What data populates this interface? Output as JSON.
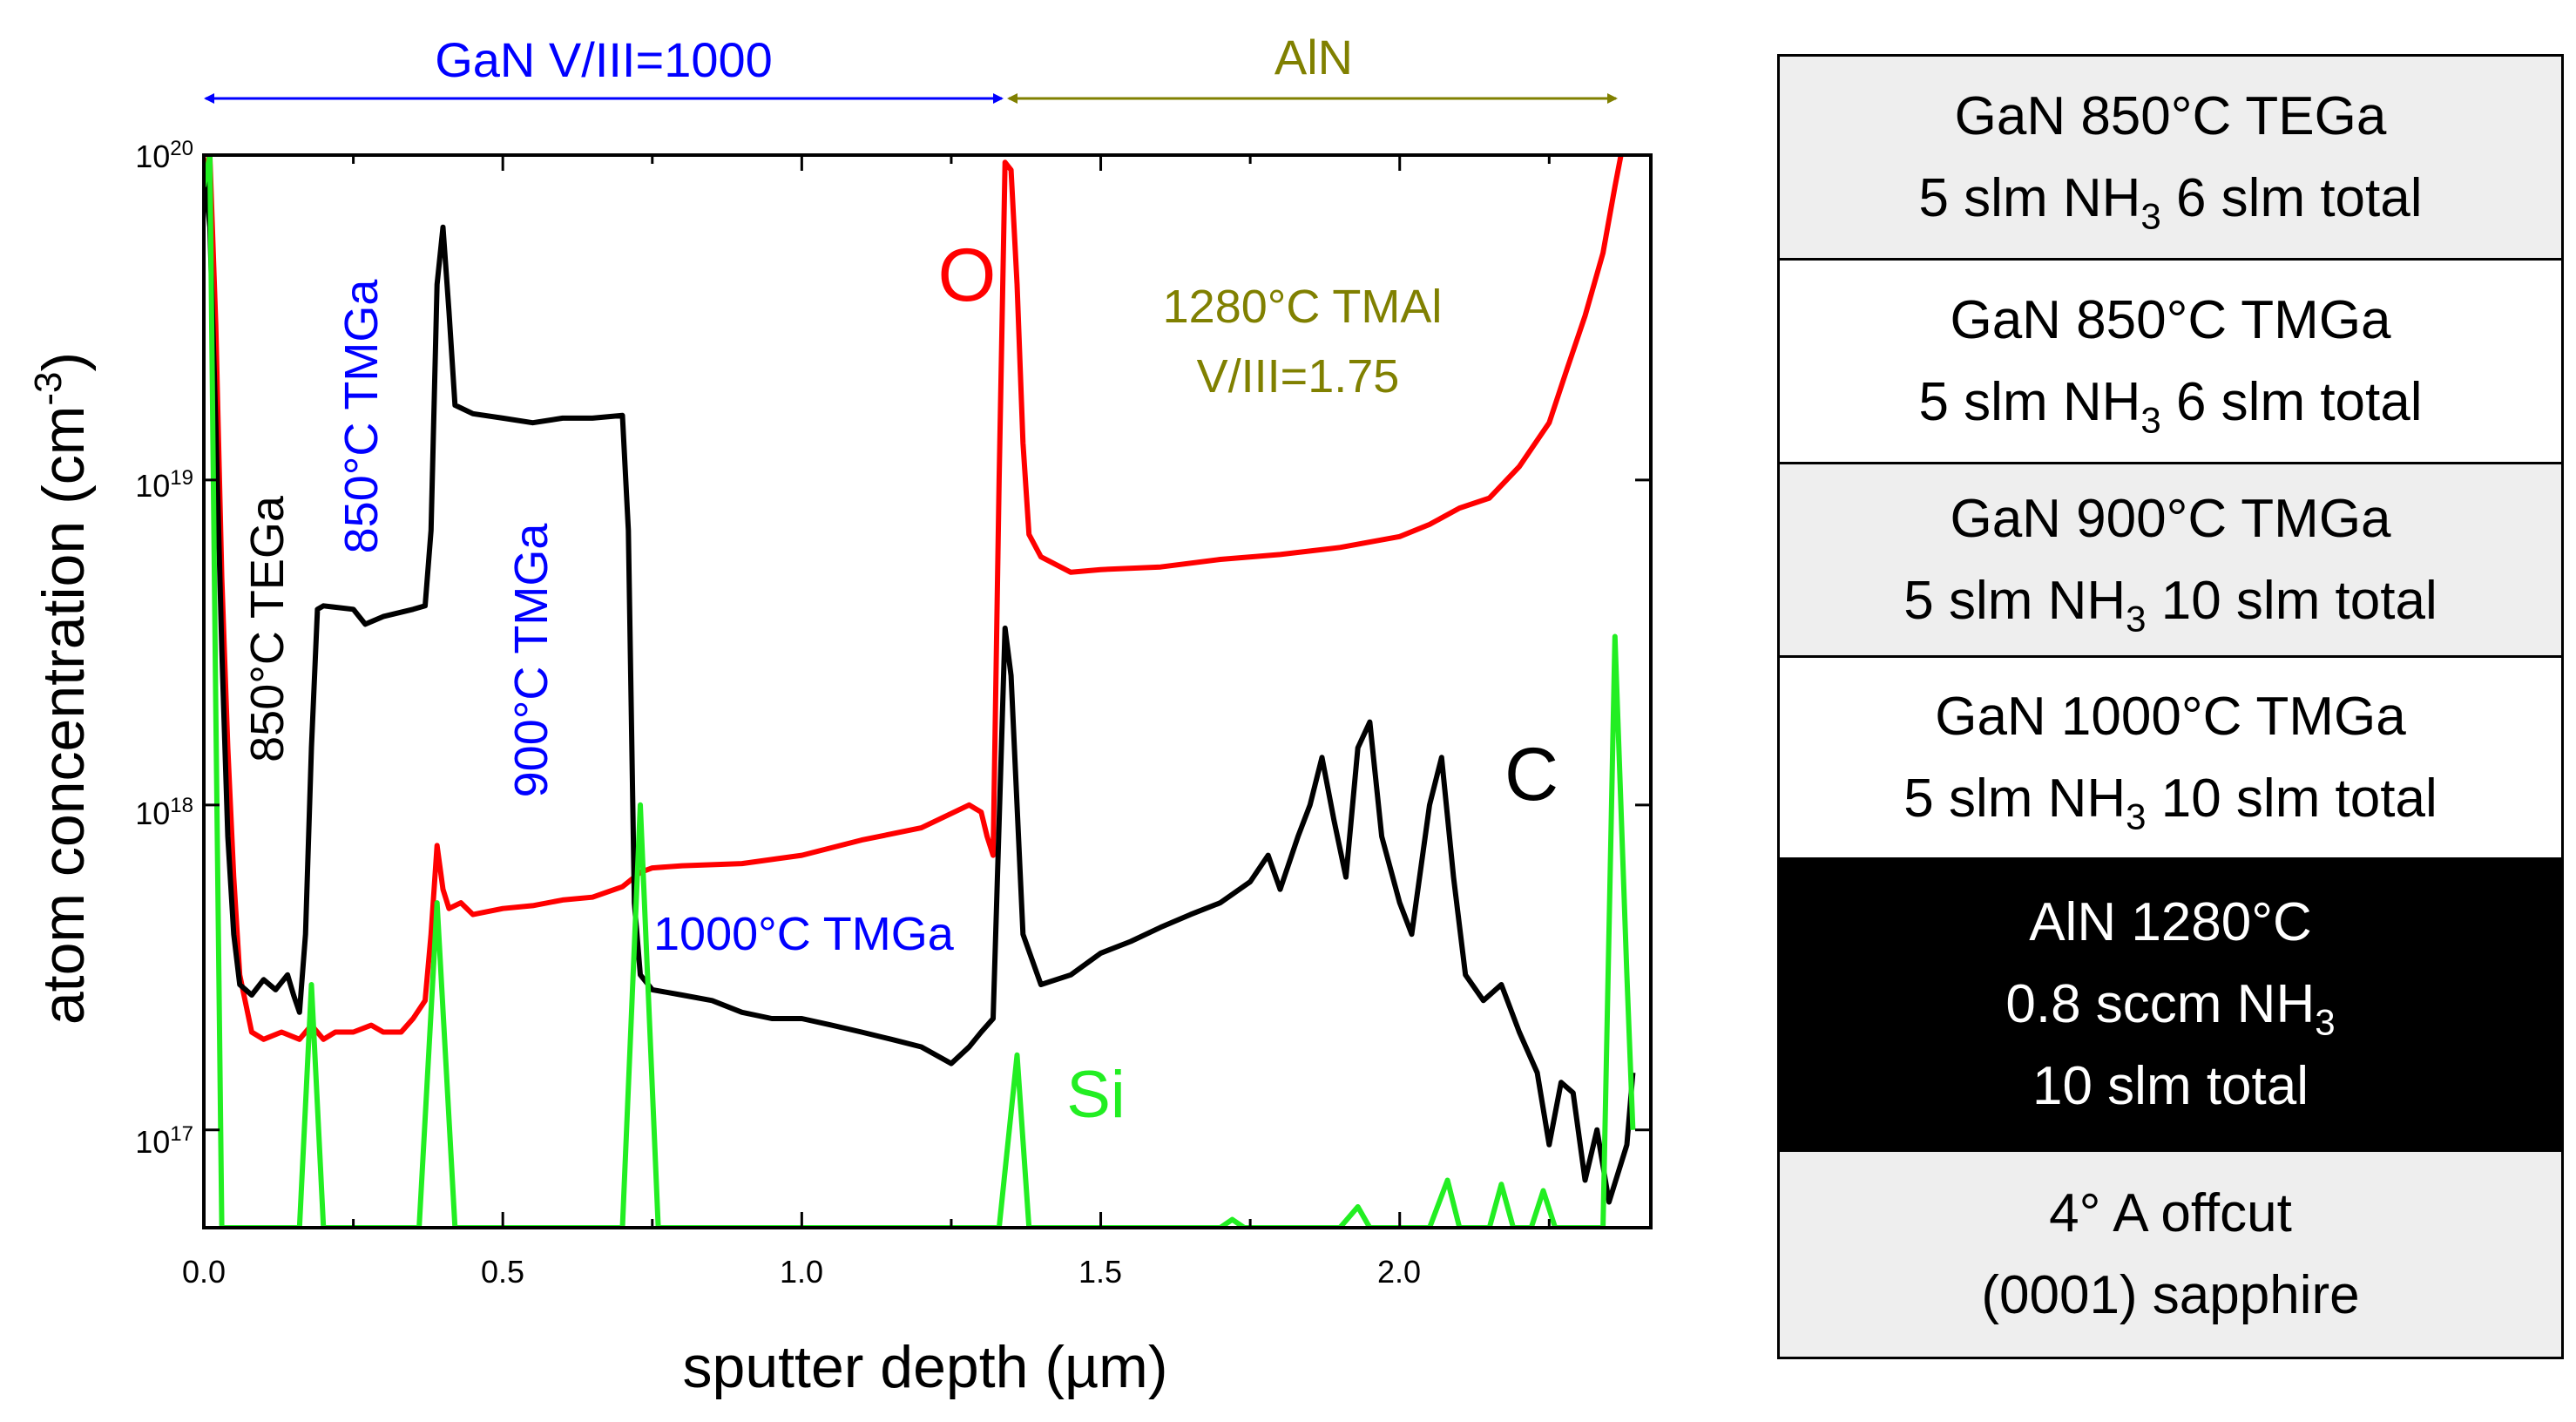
{
  "chart_data": {
    "type": "line",
    "xlabel": "sputter depth  (µm)",
    "ylabel": "atom concentration  (cm",
    "ylabel_sup": "-3",
    "ylabel_close": ")",
    "xlim": [
      0.0,
      2.42
    ],
    "ylim": [
      5e+16,
      1e+20
    ],
    "yscale": "log",
    "x_ticks": [
      "0.0",
      "0.5",
      "1.0",
      "1.5",
      "2.0"
    ],
    "x_tick_values": [
      0.0,
      0.5,
      1.0,
      1.5,
      2.0
    ],
    "y_ticks": [
      {
        "base": "10",
        "exp": "20",
        "value": 1e+20
      },
      {
        "base": "10",
        "exp": "19",
        "value": 1e+19
      },
      {
        "base": "10",
        "exp": "18",
        "value": 1e+18
      },
      {
        "base": "10",
        "exp": "17",
        "value": 1e+17
      }
    ],
    "series": [
      {
        "name": "O",
        "color": "#ff0000",
        "points": [
          [
            0.0,
            9e+19
          ],
          [
            0.01,
            1e+20
          ],
          [
            0.02,
            3e+19
          ],
          [
            0.03,
            5e+18
          ],
          [
            0.04,
            1.5e+18
          ],
          [
            0.05,
            6e+17
          ],
          [
            0.06,
            3e+17
          ],
          [
            0.08,
            2e+17
          ],
          [
            0.1,
            1.9e+17
          ],
          [
            0.13,
            2e+17
          ],
          [
            0.16,
            1.9e+17
          ],
          [
            0.18,
            2.1e+17
          ],
          [
            0.2,
            1.9e+17
          ],
          [
            0.22,
            2e+17
          ],
          [
            0.25,
            2e+17
          ],
          [
            0.28,
            2.1e+17
          ],
          [
            0.3,
            2e+17
          ],
          [
            0.33,
            2e+17
          ],
          [
            0.35,
            2.2e+17
          ],
          [
            0.37,
            2.5e+17
          ],
          [
            0.38,
            4e+17
          ],
          [
            0.39,
            7.5e+17
          ],
          [
            0.4,
            5.5e+17
          ],
          [
            0.41,
            4.8e+17
          ],
          [
            0.43,
            5e+17
          ],
          [
            0.45,
            4.6e+17
          ],
          [
            0.5,
            4.8e+17
          ],
          [
            0.55,
            4.9e+17
          ],
          [
            0.6,
            5.1e+17
          ],
          [
            0.65,
            5.2e+17
          ],
          [
            0.7,
            5.6e+17
          ],
          [
            0.73,
            6.2e+17
          ],
          [
            0.75,
            6.4e+17
          ],
          [
            0.8,
            6.5e+17
          ],
          [
            0.9,
            6.6e+17
          ],
          [
            1.0,
            7e+17
          ],
          [
            1.1,
            7.8e+17
          ],
          [
            1.2,
            8.5e+17
          ],
          [
            1.28,
            1e+18
          ],
          [
            1.3,
            9.5e+17
          ],
          [
            1.31,
            8e+17
          ],
          [
            1.32,
            7e+17
          ],
          [
            1.33,
            1e+19
          ],
          [
            1.34,
            9.5e+19
          ],
          [
            1.35,
            9e+19
          ],
          [
            1.36,
            4e+19
          ],
          [
            1.37,
            1.3e+19
          ],
          [
            1.38,
            6.8e+18
          ],
          [
            1.4,
            5.8e+18
          ],
          [
            1.45,
            5.2e+18
          ],
          [
            1.5,
            5.3e+18
          ],
          [
            1.6,
            5.4e+18
          ],
          [
            1.7,
            5.7e+18
          ],
          [
            1.8,
            5.9e+18
          ],
          [
            1.9,
            6.2e+18
          ],
          [
            2.0,
            6.7e+18
          ],
          [
            2.05,
            7.3e+18
          ],
          [
            2.1,
            8.2e+18
          ],
          [
            2.15,
            8.8e+18
          ],
          [
            2.2,
            1.1e+19
          ],
          [
            2.25,
            1.5e+19
          ],
          [
            2.28,
            2.2e+19
          ],
          [
            2.31,
            3.2e+19
          ],
          [
            2.34,
            5e+19
          ],
          [
            2.36,
            8e+19
          ],
          [
            2.37,
            1e+20
          ]
        ]
      },
      {
        "name": "C",
        "color": "#000000",
        "points": [
          [
            0.0,
            9e+19
          ],
          [
            0.01,
            6e+19
          ],
          [
            0.02,
            1.5e+19
          ],
          [
            0.03,
            3e+18
          ],
          [
            0.04,
            8e+17
          ],
          [
            0.05,
            4e+17
          ],
          [
            0.06,
            2.8e+17
          ],
          [
            0.08,
            2.6e+17
          ],
          [
            0.1,
            2.9e+17
          ],
          [
            0.12,
            2.7e+17
          ],
          [
            0.14,
            3e+17
          ],
          [
            0.15,
            2.6e+17
          ],
          [
            0.16,
            2.3e+17
          ],
          [
            0.17,
            4e+17
          ],
          [
            0.18,
            1.5e+18
          ],
          [
            0.19,
            4e+18
          ],
          [
            0.2,
            4.1e+18
          ],
          [
            0.25,
            4e+18
          ],
          [
            0.27,
            3.6e+18
          ],
          [
            0.3,
            3.8e+18
          ],
          [
            0.35,
            4e+18
          ],
          [
            0.37,
            4.1e+18
          ],
          [
            0.38,
            7e+18
          ],
          [
            0.39,
            4e+19
          ],
          [
            0.4,
            6e+19
          ],
          [
            0.41,
            3.3e+19
          ],
          [
            0.42,
            1.7e+19
          ],
          [
            0.45,
            1.6e+19
          ],
          [
            0.5,
            1.55e+19
          ],
          [
            0.55,
            1.5e+19
          ],
          [
            0.6,
            1.55e+19
          ],
          [
            0.65,
            1.55e+19
          ],
          [
            0.7,
            1.58e+19
          ],
          [
            0.71,
            7e+18
          ],
          [
            0.72,
            5e+17
          ],
          [
            0.73,
            3e+17
          ],
          [
            0.75,
            2.7e+17
          ],
          [
            0.8,
            2.6e+17
          ],
          [
            0.85,
            2.5e+17
          ],
          [
            0.9,
            2.3e+17
          ],
          [
            0.95,
            2.2e+17
          ],
          [
            1.0,
            2.2e+17
          ],
          [
            1.05,
            2.1e+17
          ],
          [
            1.1,
            2e+17
          ],
          [
            1.15,
            1.9e+17
          ],
          [
            1.2,
            1.8e+17
          ],
          [
            1.25,
            1.6e+17
          ],
          [
            1.28,
            1.8e+17
          ],
          [
            1.3,
            2e+17
          ],
          [
            1.32,
            2.2e+17
          ],
          [
            1.34,
            3.5e+18
          ],
          [
            1.35,
            2.5e+18
          ],
          [
            1.37,
            4e+17
          ],
          [
            1.4,
            2.8e+17
          ],
          [
            1.45,
            3e+17
          ],
          [
            1.5,
            3.5e+17
          ],
          [
            1.55,
            3.8e+17
          ],
          [
            1.6,
            4.2e+17
          ],
          [
            1.65,
            4.6e+17
          ],
          [
            1.7,
            5e+17
          ],
          [
            1.75,
            5.8e+17
          ],
          [
            1.78,
            7e+17
          ],
          [
            1.8,
            5.5e+17
          ],
          [
            1.83,
            8e+17
          ],
          [
            1.85,
            1e+18
          ],
          [
            1.87,
            1.4e+18
          ],
          [
            1.89,
            9e+17
          ],
          [
            1.91,
            6e+17
          ],
          [
            1.93,
            1.5e+18
          ],
          [
            1.95,
            1.8e+18
          ],
          [
            1.97,
            8e+17
          ],
          [
            2.0,
            5e+17
          ],
          [
            2.02,
            4e+17
          ],
          [
            2.05,
            1e+18
          ],
          [
            2.07,
            1.4e+18
          ],
          [
            2.09,
            6e+17
          ],
          [
            2.11,
            3e+17
          ],
          [
            2.14,
            2.5e+17
          ],
          [
            2.17,
            2.8e+17
          ],
          [
            2.2,
            2e+17
          ],
          [
            2.23,
            1.5e+17
          ],
          [
            2.25,
            9e+16
          ],
          [
            2.27,
            1.4e+17
          ],
          [
            2.29,
            1.3e+17
          ],
          [
            2.31,
            7e+16
          ],
          [
            2.33,
            1e+17
          ],
          [
            2.35,
            6e+16
          ],
          [
            2.38,
            9e+16
          ],
          [
            2.39,
            1.5e+17
          ]
        ]
      },
      {
        "name": "Si",
        "color": "#22ee22",
        "points": [
          [
            0.0,
            8e+19
          ],
          [
            0.01,
            1e+20
          ],
          [
            0.02,
            2e+18
          ],
          [
            0.03,
            5e+16
          ],
          [
            0.16,
            5e+16
          ],
          [
            0.18,
            2.8e+17
          ],
          [
            0.2,
            5e+16
          ],
          [
            0.36,
            5e+16
          ],
          [
            0.39,
            5e+17
          ],
          [
            0.42,
            5e+16
          ],
          [
            0.7,
            5e+16
          ],
          [
            0.73,
            1e+18
          ],
          [
            0.76,
            5e+16
          ],
          [
            1.33,
            5e+16
          ],
          [
            1.36,
            1.7e+17
          ],
          [
            1.38,
            5e+16
          ],
          [
            1.7,
            5e+16
          ],
          [
            1.72,
            5.3e+16
          ],
          [
            1.74,
            5e+16
          ],
          [
            1.9,
            5e+16
          ],
          [
            1.93,
            5.8e+16
          ],
          [
            1.95,
            5e+16
          ],
          [
            2.05,
            5e+16
          ],
          [
            2.08,
            7e+16
          ],
          [
            2.1,
            5e+16
          ],
          [
            2.15,
            5e+16
          ],
          [
            2.17,
            6.8e+16
          ],
          [
            2.19,
            5e+16
          ],
          [
            2.22,
            5e+16
          ],
          [
            2.24,
            6.5e+16
          ],
          [
            2.26,
            5e+16
          ],
          [
            2.34,
            5e+16
          ],
          [
            2.36,
            3.3e+18
          ],
          [
            2.38,
            3e+17
          ],
          [
            2.39,
            1e+17
          ]
        ]
      }
    ],
    "annotations": {
      "gan_bracket": "GaN V/III=1000",
      "aln_bracket": "AlN",
      "tega_850": "850°C TEGa",
      "tmga_850": "850°C TMGa",
      "tmga_900": "900°C TMGa",
      "tmga_1000": "1000°C TMGa",
      "aln_growth_1": "1280°C TMAl",
      "aln_growth_2": "V/III=1.75",
      "label_O": "O",
      "label_C": "C",
      "label_Si": "Si"
    },
    "colors": {
      "gan_bracket": "#0000ff",
      "aln_bracket": "#808000"
    }
  },
  "stack": [
    {
      "lines": [
        {
          "text": "GaN 850°C TEGa"
        },
        {
          "pre": "5 slm NH",
          "sub": "3",
          "post": " 6 slm total"
        }
      ],
      "bg": "#eeeeee",
      "color": "#000000"
    },
    {
      "lines": [
        {
          "text": "GaN 850°C TMGa"
        },
        {
          "pre": "5 slm NH",
          "sub": "3",
          "post": " 6 slm total"
        }
      ],
      "bg": "#ffffff",
      "color": "#000000"
    },
    {
      "lines": [
        {
          "text": "GaN 900°C TMGa"
        },
        {
          "pre": "5 slm NH",
          "sub": "3",
          "post": " 10 slm total"
        }
      ],
      "bg": "#eeeeee",
      "color": "#000000"
    },
    {
      "lines": [
        {
          "text": "GaN 1000°C TMGa"
        },
        {
          "pre": "5 slm NH",
          "sub": "3",
          "post": " 10 slm total"
        }
      ],
      "bg": "#ffffff",
      "color": "#000000"
    },
    {
      "lines": [
        {
          "text": "AlN 1280°C"
        },
        {
          "pre": "0.8 sccm NH",
          "sub": "3",
          "post": ""
        },
        {
          "text": "10 slm total"
        }
      ],
      "bg": "#000000",
      "color": "#ffffff"
    },
    {
      "lines": [
        {
          "text": "4° A offcut"
        },
        {
          "text": "(0001) sapphire"
        }
      ],
      "bg": "#eeeeee",
      "color": "#000000"
    }
  ]
}
